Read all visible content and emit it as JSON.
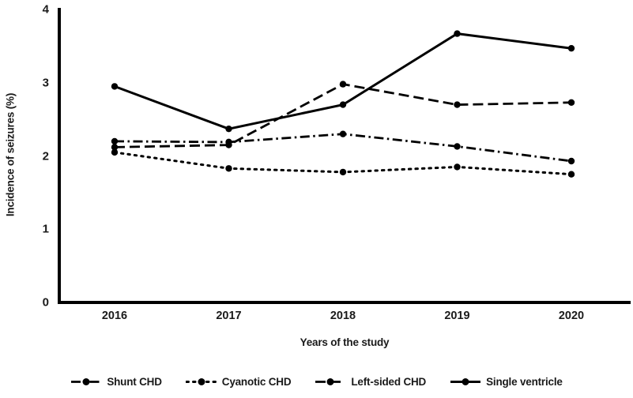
{
  "colors": {
    "ink": "#000000",
    "background": "#ffffff"
  },
  "chart_data": {
    "type": "line",
    "title": "",
    "xlabel": "Years of the study",
    "ylabel": "Incidence of seizures (%)",
    "categories": [
      "2016",
      "2017",
      "2018",
      "2019",
      "2020"
    ],
    "ylim": [
      0,
      4
    ],
    "yticks": [
      0,
      1,
      2,
      3,
      4
    ],
    "grid": false,
    "legend_position": "bottom",
    "marker": "circle",
    "series": [
      {
        "name": "Shunt CHD",
        "style": "dashdot",
        "color": "#000000",
        "values": [
          2.2,
          2.19,
          2.3,
          2.13,
          1.93
        ]
      },
      {
        "name": "Cyanotic CHD",
        "style": "dotted",
        "color": "#000000",
        "values": [
          2.05,
          1.83,
          1.78,
          1.85,
          1.75
        ]
      },
      {
        "name": "Left-sided CHD",
        "style": "dashed",
        "color": "#000000",
        "values": [
          2.12,
          2.15,
          2.98,
          2.7,
          2.73
        ]
      },
      {
        "name": "Single ventricle",
        "style": "solid",
        "color": "#000000",
        "values": [
          2.95,
          2.37,
          2.7,
          3.67,
          3.47
        ]
      }
    ]
  }
}
